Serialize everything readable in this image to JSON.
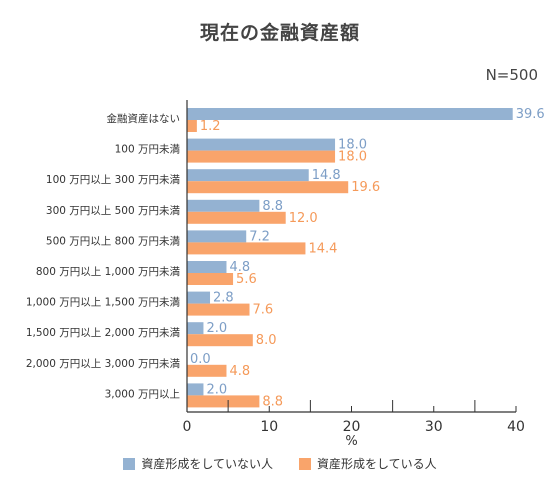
{
  "colors": {
    "series_not_forming": "#94b2d2",
    "series_forming": "#f9a46b",
    "axis": "#333333",
    "label_not_forming": "#7d9ec6",
    "label_forming": "#f59a5a"
  },
  "chart_data": {
    "type": "bar",
    "orientation": "horizontal",
    "title": "現在の金融資産額",
    "note": "N=500",
    "xlabel": "%",
    "xlim": [
      0,
      40
    ],
    "xticks": [
      "0",
      "10",
      "20",
      "30",
      "40"
    ],
    "grid": false,
    "legend_position": "bottom",
    "categories": [
      "金融資産はない",
      "100 万円未満",
      "100 万円以上 300 万円未満",
      "300 万円以上 500 万円未満",
      "500 万円以上 800 万円未満",
      "800 万円以上 1,000 万円未満",
      "1,000 万円以上 1,500 万円未満",
      "1,500 万円以上 2,000 万円未満",
      "2,000 万円以上 3,000 万円未満",
      "3,000 万円以上"
    ],
    "series": [
      {
        "name": "資産形成をしていない人",
        "values": [
          39.6,
          18.0,
          14.8,
          8.8,
          7.2,
          4.8,
          2.8,
          2.0,
          0.0,
          2.0
        ],
        "labels": [
          "39.6",
          "18.0",
          "14.8",
          "8.8",
          "7.2",
          "4.8",
          "2.8",
          "2.0",
          "0.0",
          "2.0"
        ]
      },
      {
        "name": "資産形成をしている人",
        "values": [
          1.2,
          18.0,
          19.6,
          12.0,
          14.4,
          5.6,
          7.6,
          8.0,
          4.8,
          8.8
        ],
        "labels": [
          "1.2",
          "18.0",
          "19.6",
          "12.0",
          "14.4",
          "5.6",
          "7.6",
          "8.0",
          "4.8",
          "8.8"
        ]
      }
    ]
  }
}
